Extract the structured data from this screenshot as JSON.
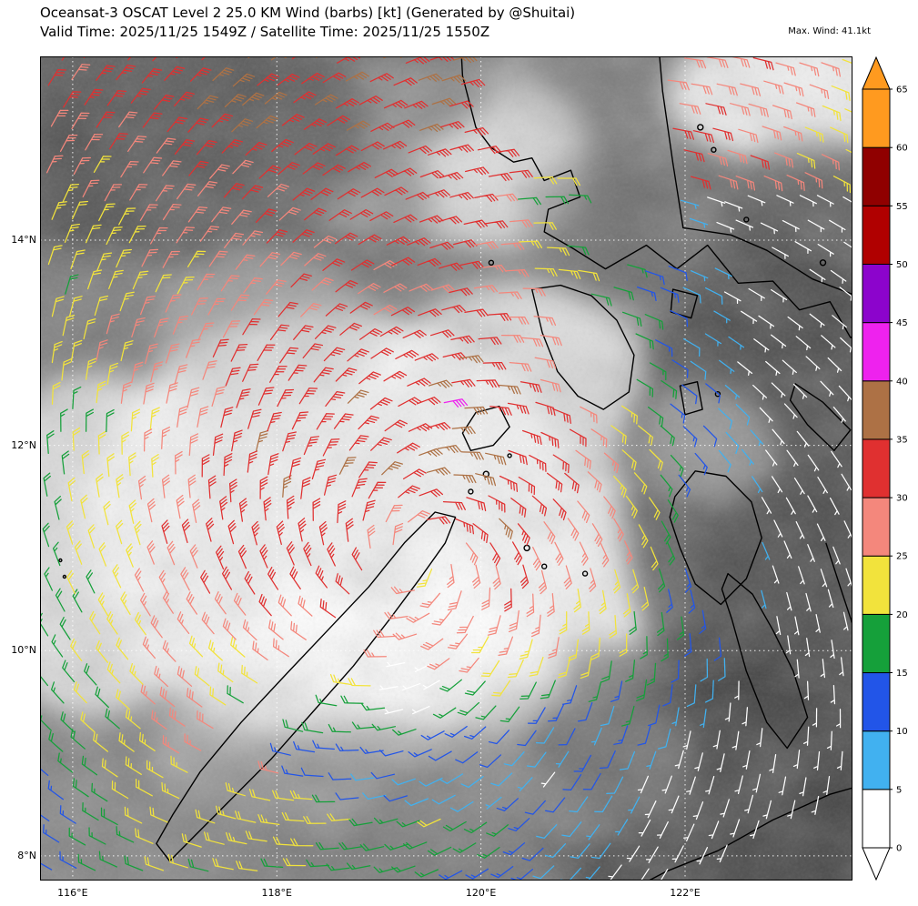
{
  "header": {
    "title": "Oceansat-3 OSCAT Level 2 25.0 KM Wind (barbs) [kt] (Generated by @Shuitai)",
    "subtitle": "Valid Time: 2025/11/25 1549Z / Satellite Time: 2025/11/25 1550Z",
    "max_wind_label": "Max. Wind: 41.1kt"
  },
  "chart_data": {
    "type": "scatter",
    "subtype": "wind_barb_map",
    "title": "Oceansat-3 OSCAT Level 2 25.0 KM Wind (barbs) [kt]",
    "unit": "kt",
    "max_wind_kt": 41.1,
    "extent": {
      "lon_min": 115.68,
      "lon_max": 123.64,
      "lat_min": 7.76,
      "lat_max": 15.79
    },
    "x_ticks": [
      {
        "value": 116,
        "label": "116°E"
      },
      {
        "value": 118,
        "label": "118°E"
      },
      {
        "value": 120,
        "label": "120°E"
      },
      {
        "value": 122,
        "label": "122°E"
      }
    ],
    "y_ticks": [
      {
        "value": 8,
        "label": "8°N"
      },
      {
        "value": 10,
        "label": "10°N"
      },
      {
        "value": 12,
        "label": "12°N"
      },
      {
        "value": 14,
        "label": "14°N"
      }
    ],
    "colorbar": {
      "unit": "kt",
      "levels": [
        0,
        5,
        10,
        15,
        20,
        25,
        30,
        35,
        40,
        45,
        50,
        55,
        60,
        65
      ],
      "colors": [
        "#ffffff",
        "#41b1f0",
        "#2255e8",
        "#15a03a",
        "#f2e33c",
        "#f4877c",
        "#e03030",
        "#ad7145",
        "#ee22ee",
        "#8c04cc",
        "#b00000",
        "#900000",
        "#ff9a1f"
      ],
      "arrow_top_color": "#ff9a1f",
      "arrow_bottom_color": "#ffffff"
    },
    "wind_field": {
      "center": {
        "lon": 119.4,
        "lat": 10.9
      },
      "rotation": "counterclockwise",
      "inflow_deg": 20,
      "grid_spacing_deg": 0.225,
      "max_wind_kt": 41.1,
      "max_wind_location": {
        "lon": 119.7,
        "lat": 12.35
      },
      "calm_spot": {
        "lon": 119.35,
        "lat": 9.7,
        "radius_deg": 0.3
      },
      "ring": {
        "inner_deg": 0.9,
        "outer_deg": 1.9,
        "peak_kt": 34,
        "core_kt": 24,
        "decay_kt_per_deg": 5.5
      }
    },
    "coastlines": [
      {
        "name": "palawan",
        "closed": true,
        "points": [
          [
            116.95,
            7.95
          ],
          [
            117.2,
            8.2
          ],
          [
            117.55,
            8.55
          ],
          [
            117.95,
            8.95
          ],
          [
            118.35,
            9.4
          ],
          [
            118.75,
            9.85
          ],
          [
            119.1,
            10.3
          ],
          [
            119.4,
            10.7
          ],
          [
            119.65,
            11.05
          ],
          [
            119.75,
            11.3
          ],
          [
            119.55,
            11.35
          ],
          [
            119.25,
            11.05
          ],
          [
            118.9,
            10.62
          ],
          [
            118.5,
            10.2
          ],
          [
            118.1,
            9.78
          ],
          [
            117.65,
            9.3
          ],
          [
            117.25,
            8.82
          ],
          [
            116.98,
            8.4
          ],
          [
            116.82,
            8.12
          ]
        ]
      },
      {
        "name": "calamian",
        "closed": true,
        "points": [
          [
            119.9,
            11.95
          ],
          [
            120.12,
            12.0
          ],
          [
            120.28,
            12.18
          ],
          [
            120.18,
            12.38
          ],
          [
            119.95,
            12.32
          ],
          [
            119.82,
            12.12
          ]
        ]
      },
      {
        "name": "mindoro",
        "closed": true,
        "points": [
          [
            120.5,
            13.52
          ],
          [
            120.6,
            13.1
          ],
          [
            120.75,
            12.72
          ],
          [
            120.95,
            12.48
          ],
          [
            121.2,
            12.35
          ],
          [
            121.45,
            12.52
          ],
          [
            121.5,
            12.88
          ],
          [
            121.33,
            13.22
          ],
          [
            121.08,
            13.46
          ],
          [
            120.78,
            13.56
          ]
        ]
      },
      {
        "name": "luzon",
        "closed": true,
        "points": [
          [
            119.78,
            16.35
          ],
          [
            119.82,
            15.6
          ],
          [
            119.95,
            15.1
          ],
          [
            120.1,
            14.9
          ],
          [
            120.32,
            14.76
          ],
          [
            120.5,
            14.8
          ],
          [
            120.62,
            14.58
          ],
          [
            120.88,
            14.68
          ],
          [
            120.97,
            14.42
          ],
          [
            120.66,
            14.3
          ],
          [
            120.62,
            14.08
          ],
          [
            120.9,
            13.92
          ],
          [
            121.22,
            13.72
          ],
          [
            121.62,
            13.95
          ],
          [
            121.92,
            13.72
          ],
          [
            122.22,
            13.95
          ],
          [
            122.52,
            13.58
          ],
          [
            122.86,
            13.6
          ],
          [
            123.12,
            13.32
          ],
          [
            123.42,
            13.4
          ],
          [
            123.62,
            13.05
          ],
          [
            123.95,
            13.12
          ],
          [
            124.1,
            13.2
          ],
          [
            123.7,
            13.45
          ],
          [
            123.25,
            13.62
          ],
          [
            122.8,
            13.9
          ],
          [
            122.45,
            14.05
          ],
          [
            121.98,
            14.12
          ],
          [
            121.88,
            14.75
          ],
          [
            121.78,
            15.45
          ],
          [
            121.7,
            16.35
          ]
        ]
      },
      {
        "name": "marinduque",
        "closed": true,
        "points": [
          [
            121.88,
            13.52
          ],
          [
            122.12,
            13.46
          ],
          [
            122.06,
            13.24
          ],
          [
            121.86,
            13.3
          ]
        ]
      },
      {
        "name": "tablas",
        "closed": true,
        "points": [
          [
            121.95,
            12.58
          ],
          [
            122.12,
            12.62
          ],
          [
            122.17,
            12.35
          ],
          [
            122.0,
            12.3
          ]
        ]
      },
      {
        "name": "masbate",
        "closed": true,
        "points": [
          [
            123.08,
            12.6
          ],
          [
            123.35,
            12.42
          ],
          [
            123.62,
            12.15
          ],
          [
            123.46,
            11.95
          ],
          [
            123.2,
            12.2
          ],
          [
            123.03,
            12.44
          ]
        ]
      },
      {
        "name": "panay",
        "closed": true,
        "points": [
          [
            121.9,
            11.5
          ],
          [
            122.1,
            11.75
          ],
          [
            122.4,
            11.7
          ],
          [
            122.65,
            11.45
          ],
          [
            122.75,
            11.1
          ],
          [
            122.6,
            10.7
          ],
          [
            122.35,
            10.45
          ],
          [
            122.1,
            10.65
          ],
          [
            121.95,
            11.0
          ],
          [
            121.85,
            11.3
          ]
        ]
      },
      {
        "name": "negros",
        "closed": true,
        "points": [
          [
            122.42,
            10.75
          ],
          [
            122.66,
            10.55
          ],
          [
            122.86,
            10.2
          ],
          [
            123.06,
            9.8
          ],
          [
            123.2,
            9.35
          ],
          [
            123.0,
            9.05
          ],
          [
            122.8,
            9.3
          ],
          [
            122.6,
            9.8
          ],
          [
            122.46,
            10.3
          ],
          [
            122.36,
            10.6
          ]
        ]
      },
      {
        "name": "cebu",
        "closed": false,
        "points": [
          [
            123.38,
            11.05
          ],
          [
            123.52,
            10.62
          ],
          [
            123.66,
            10.2
          ],
          [
            123.82,
            9.78
          ],
          [
            123.92,
            9.4
          ]
        ]
      },
      {
        "name": "zamboanga",
        "closed": true,
        "points": [
          [
            121.3,
            7.58
          ],
          [
            121.82,
            7.85
          ],
          [
            122.32,
            8.05
          ],
          [
            122.86,
            8.35
          ],
          [
            123.42,
            8.6
          ],
          [
            123.95,
            8.75
          ],
          [
            124.3,
            8.62
          ],
          [
            124.3,
            7.2
          ],
          [
            121.3,
            7.2
          ]
        ]
      }
    ],
    "islands": [
      {
        "lon": 120.05,
        "lat": 11.72,
        "r": 3
      },
      {
        "lon": 119.9,
        "lat": 11.55,
        "r": 2.5
      },
      {
        "lon": 120.45,
        "lat": 11.0,
        "r": 3
      },
      {
        "lon": 120.62,
        "lat": 10.82,
        "r": 2.5
      },
      {
        "lon": 121.02,
        "lat": 10.75,
        "r": 2.5
      },
      {
        "lon": 115.88,
        "lat": 10.88,
        "r": 1.5
      },
      {
        "lon": 115.92,
        "lat": 10.72,
        "r": 1.5
      },
      {
        "lon": 120.1,
        "lat": 13.78,
        "r": 2.5
      },
      {
        "lon": 122.32,
        "lat": 12.5,
        "r": 2.5
      },
      {
        "lon": 120.28,
        "lat": 11.9,
        "r": 2
      },
      {
        "lon": 122.15,
        "lat": 15.1,
        "r": 3
      },
      {
        "lon": 122.28,
        "lat": 14.88,
        "r": 2.5
      },
      {
        "lon": 122.6,
        "lat": 14.2,
        "r": 2.5
      },
      {
        "lon": 123.35,
        "lat": 13.78,
        "r": 3
      }
    ],
    "clouds": {
      "base": "#7a7a7a",
      "blobs": [
        {
          "lon": 118.5,
          "lat": 11.2,
          "rx": 2.4,
          "ry": 2.1,
          "gray": 250,
          "op": 0.95
        },
        {
          "lon": 119.3,
          "lat": 10.0,
          "rx": 1.6,
          "ry": 1.1,
          "gray": 255,
          "op": 0.9
        },
        {
          "lon": 120.4,
          "lat": 12.6,
          "rx": 1.3,
          "ry": 1.0,
          "gray": 245,
          "op": 0.8
        },
        {
          "lon": 121.2,
          "lat": 10.9,
          "rx": 1.0,
          "ry": 0.9,
          "gray": 255,
          "op": 0.85
        },
        {
          "lon": 118.0,
          "lat": 9.0,
          "rx": 1.3,
          "ry": 0.7,
          "gray": 225,
          "op": 0.55
        },
        {
          "lon": 116.2,
          "lat": 11.0,
          "rx": 1.2,
          "ry": 1.7,
          "gray": 245,
          "op": 0.8
        },
        {
          "lon": 119.4,
          "lat": 14.9,
          "rx": 1.7,
          "ry": 0.9,
          "gray": 235,
          "op": 0.55
        },
        {
          "lon": 120.2,
          "lat": 14.6,
          "rx": 0.8,
          "ry": 0.7,
          "gray": 240,
          "op": 0.7
        },
        {
          "lon": 123.1,
          "lat": 15.4,
          "rx": 1.3,
          "ry": 0.7,
          "gray": 252,
          "op": 0.9
        },
        {
          "lon": 116.6,
          "lat": 15.1,
          "rx": 2.3,
          "ry": 1.3,
          "gray": 70,
          "op": 0.75
        },
        {
          "lon": 118.9,
          "lat": 15.5,
          "rx": 1.2,
          "ry": 0.6,
          "gray": 85,
          "op": 0.5
        },
        {
          "lon": 118.3,
          "lat": 14.3,
          "rx": 1.2,
          "ry": 0.9,
          "gray": 95,
          "op": 0.5
        },
        {
          "lon": 122.9,
          "lat": 11.5,
          "rx": 1.5,
          "ry": 2.4,
          "gray": 62,
          "op": 0.8
        },
        {
          "lon": 123.3,
          "lat": 14.0,
          "rx": 1.0,
          "ry": 1.0,
          "gray": 70,
          "op": 0.6
        },
        {
          "lon": 122.4,
          "lat": 8.6,
          "rx": 2.1,
          "ry": 1.2,
          "gray": 58,
          "op": 0.8
        },
        {
          "lon": 119.0,
          "lat": 8.3,
          "rx": 2.0,
          "ry": 1.0,
          "gray": 120,
          "op": 0.55
        },
        {
          "lon": 116.3,
          "lat": 8.4,
          "rx": 1.4,
          "ry": 1.0,
          "gray": 140,
          "op": 0.5
        },
        {
          "lon": 117.9,
          "lat": 13.1,
          "rx": 1.1,
          "ry": 0.8,
          "gray": 200,
          "op": 0.5
        },
        {
          "lon": 121.6,
          "lat": 14.2,
          "rx": 1.2,
          "ry": 0.8,
          "gray": 90,
          "op": 0.45
        },
        {
          "lon": 120.9,
          "lat": 8.9,
          "rx": 1.2,
          "ry": 0.8,
          "gray": 150,
          "op": 0.5
        },
        {
          "lon": 122.2,
          "lat": 12.0,
          "rx": 0.7,
          "ry": 0.6,
          "gray": 220,
          "op": 0.5
        }
      ]
    }
  }
}
